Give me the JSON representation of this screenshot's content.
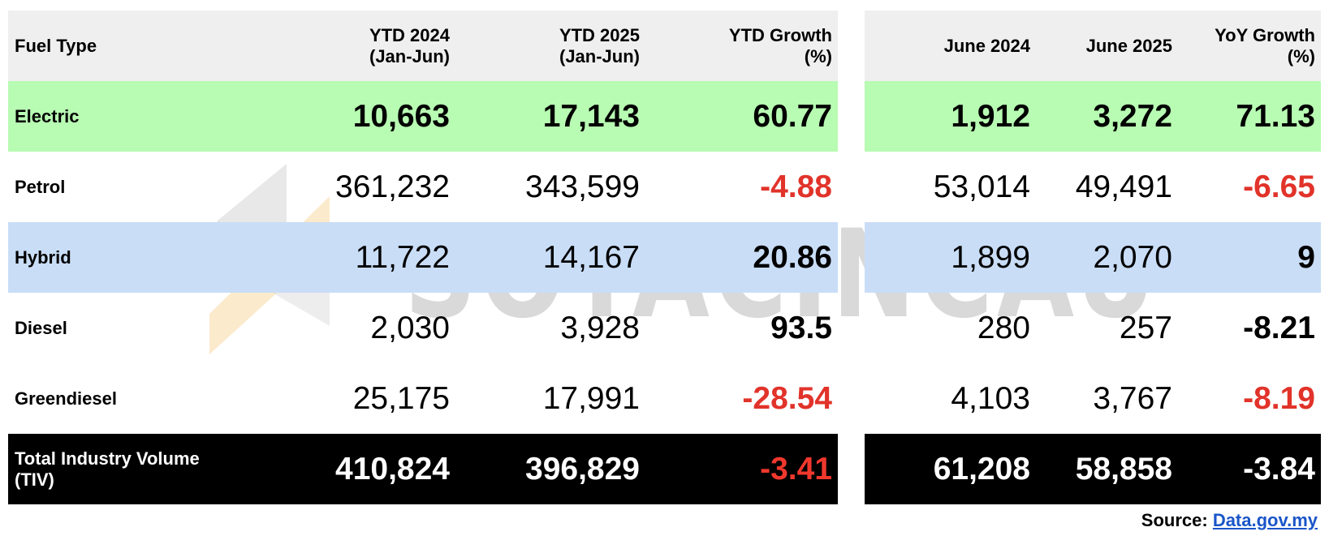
{
  "headers": {
    "fuel_type": "Fuel Type",
    "ytd2024": [
      "YTD 2024",
      "(Jan-Jun)"
    ],
    "ytd2025": [
      "YTD 2025",
      "(Jan-Jun)"
    ],
    "ytd_growth": [
      "YTD Growth",
      "(%)"
    ],
    "june2024": "June 2024",
    "june2025": "June 2025",
    "yoy_growth": [
      "YoY Growth",
      "(%)"
    ]
  },
  "rows": [
    {
      "fuel": "Electric",
      "ytd2024": "10,663",
      "ytd2025": "17,143",
      "ytd_growth": "60.77",
      "june2024": "1,912",
      "june2025": "3,272",
      "yoy_growth": "71.13"
    },
    {
      "fuel": "Petrol",
      "ytd2024": "361,232",
      "ytd2025": "343,599",
      "ytd_growth": "-4.88",
      "june2024": "53,014",
      "june2025": "49,491",
      "yoy_growth": "-6.65"
    },
    {
      "fuel": "Hybrid",
      "ytd2024": "11,722",
      "ytd2025": "14,167",
      "ytd_growth": "20.86",
      "june2024": "1,899",
      "june2025": "2,070",
      "yoy_growth": "9"
    },
    {
      "fuel": "Diesel",
      "ytd2024": "2,030",
      "ytd2025": "3,928",
      "ytd_growth": "93.5",
      "june2024": "280",
      "june2025": "257",
      "yoy_growth": "-8.21"
    },
    {
      "fuel": "Greendiesel",
      "ytd2024": "25,175",
      "ytd2025": "17,991",
      "ytd_growth": "-28.54",
      "june2024": "4,103",
      "june2025": "3,767",
      "yoy_growth": "-8.19"
    }
  ],
  "total": {
    "fuel": [
      "Total Industry Volume",
      "(TIV)"
    ],
    "ytd2024": "410,824",
    "ytd2025": "396,829",
    "ytd_growth": "-3.41",
    "june2024": "61,208",
    "june2025": "58,858",
    "yoy_growth": "-3.84"
  },
  "source": {
    "label": "Source:",
    "link": "Data.gov.my"
  },
  "watermark": {
    "text": "SOYACINCAU"
  },
  "colors": {
    "electric_row": "#b8fbb3",
    "hybrid_row": "#c9ddf6",
    "header_row": "#efefef",
    "total_row": "#000000",
    "negative": "#e1332a",
    "link": "#1a55c8",
    "logo_grey": "#d9d9d9",
    "logo_orange": "#f9dca6"
  }
}
